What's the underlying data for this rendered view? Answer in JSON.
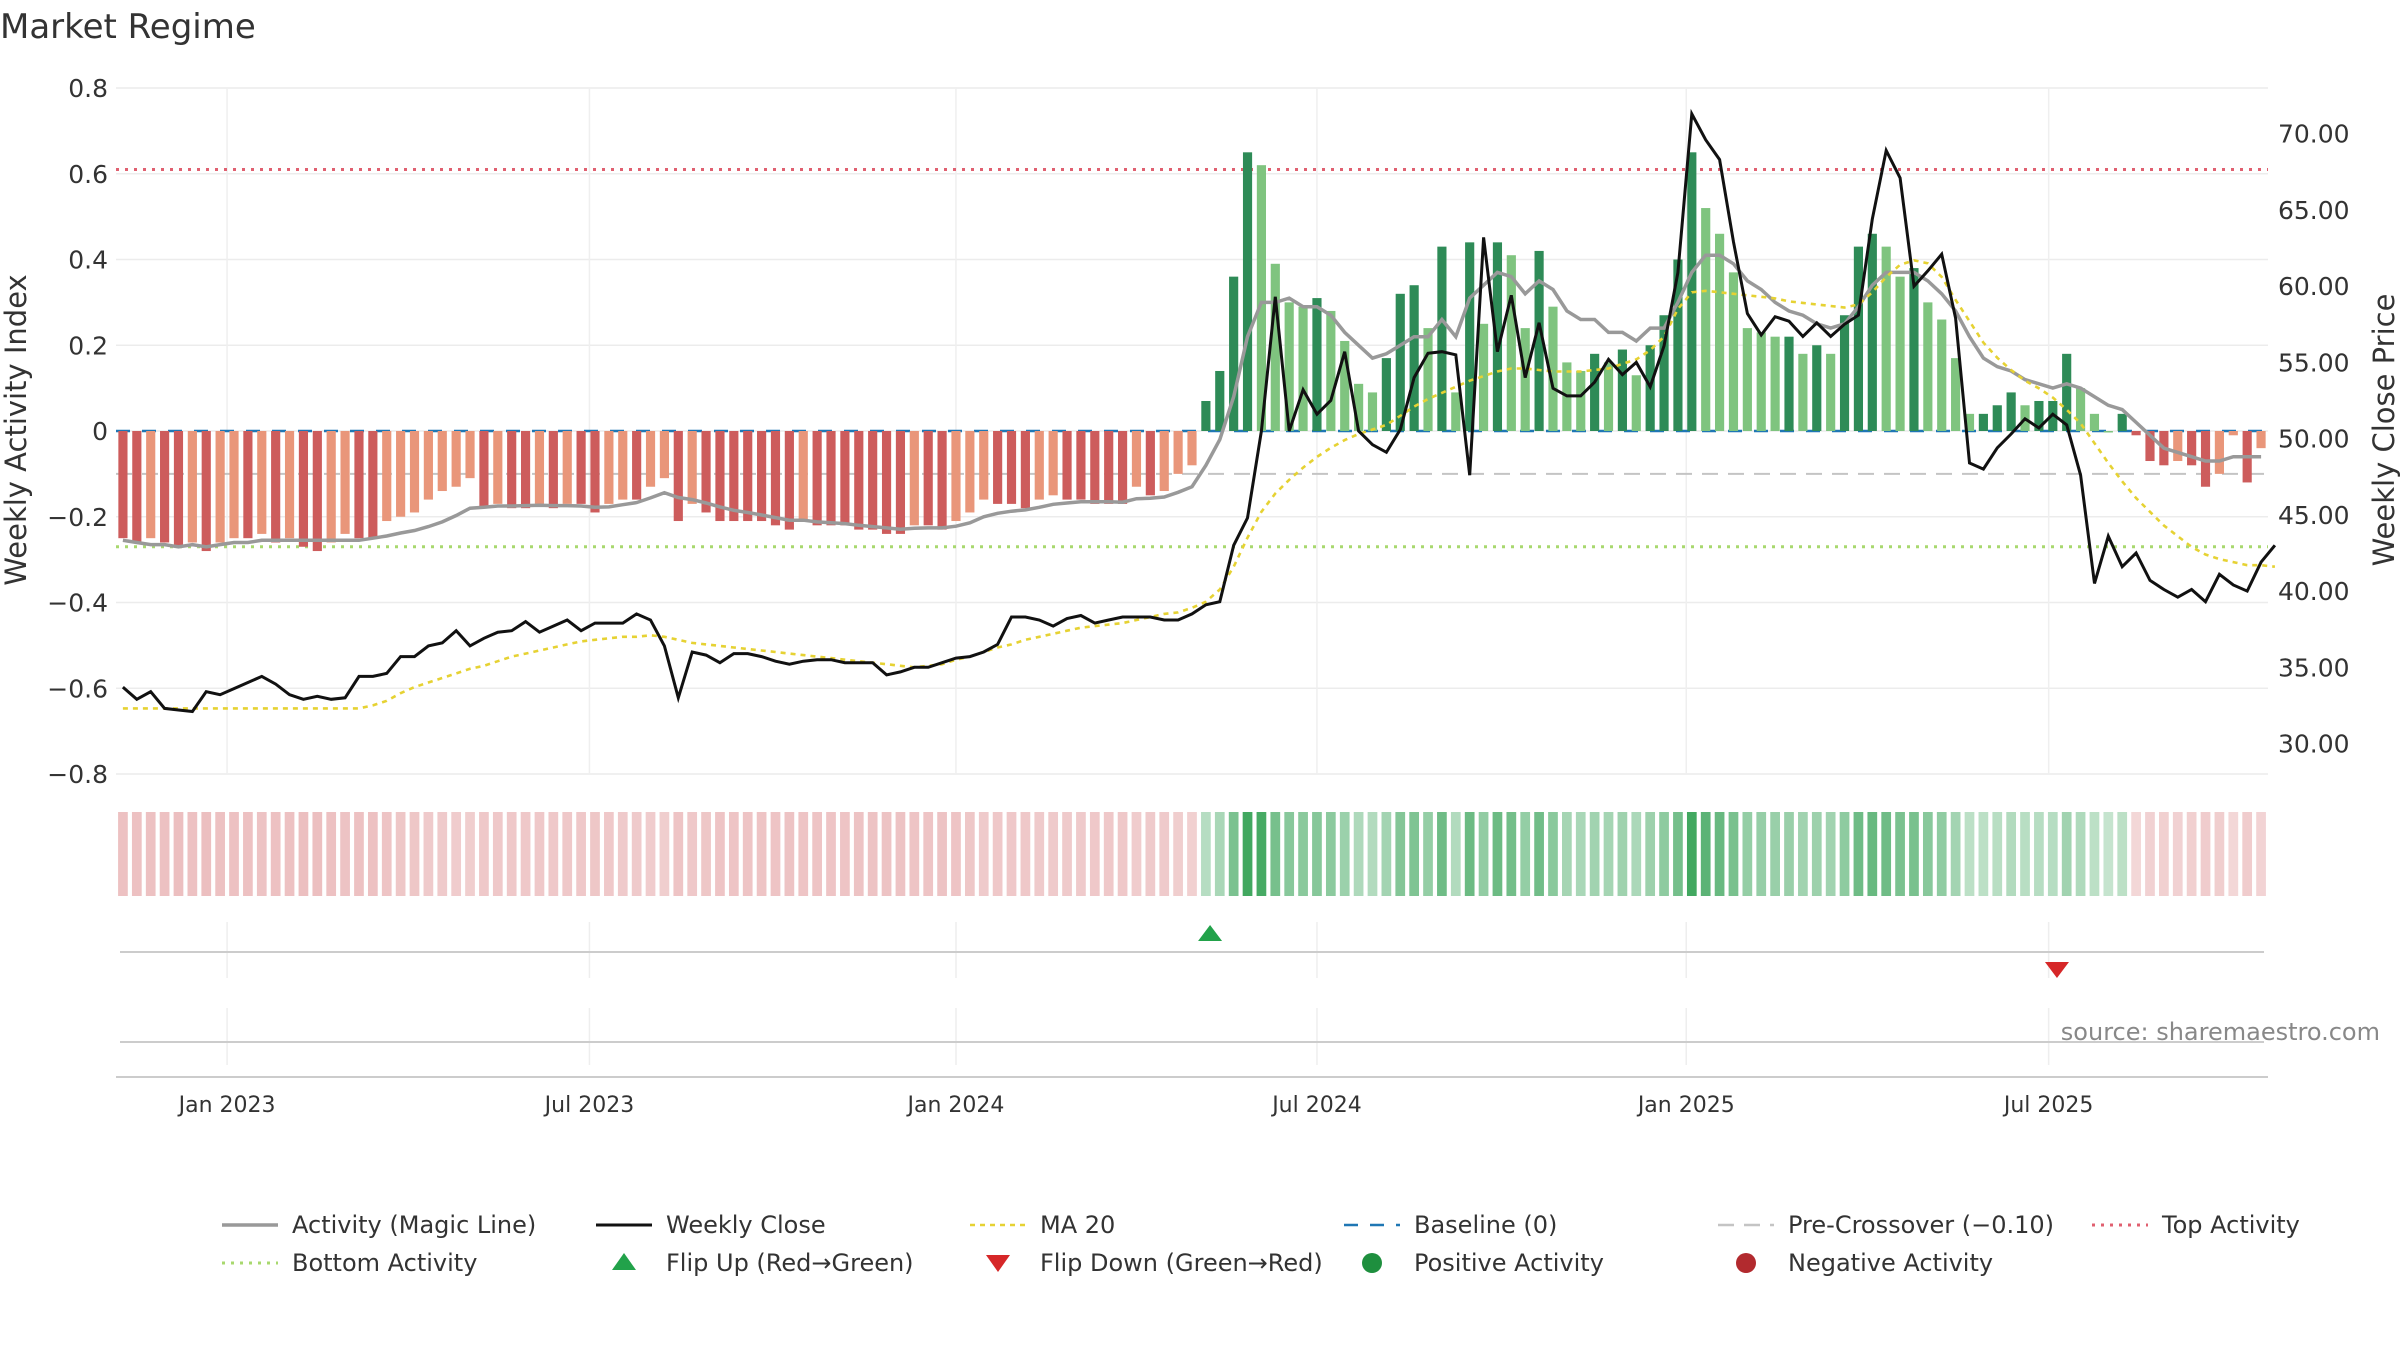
{
  "chart_data": {
    "type": "bar",
    "title": "Market Regime",
    "ylabel": "Weekly Activity Index",
    "y2label": "Weekly Close Price",
    "ylim": [
      -0.8,
      0.8
    ],
    "y2lim": [
      28,
      73
    ],
    "y_ticks": [
      "0.8",
      "0.6",
      "0.4",
      "0.2",
      "0",
      "−0.2",
      "−0.4",
      "−0.6",
      "−0.8"
    ],
    "y2_ticks": [
      "70.00",
      "65.00",
      "60.00",
      "55.00",
      "50.00",
      "45.00",
      "40.00",
      "35.00",
      "30.00"
    ],
    "x_ticks": [
      "Jan 2023",
      "Jul 2023",
      "Jan 2024",
      "Jul 2024",
      "Jan 2025",
      "Jul 2025"
    ],
    "x_tick_weeks": [
      7.5,
      33.6,
      60,
      86,
      112.6,
      138.7
    ],
    "week_start": "2022-10-24",
    "activity": [
      -0.25,
      -0.26,
      -0.25,
      -0.26,
      -0.27,
      -0.26,
      -0.28,
      -0.26,
      -0.25,
      -0.25,
      -0.24,
      -0.26,
      -0.25,
      -0.27,
      -0.28,
      -0.26,
      -0.24,
      -0.25,
      -0.25,
      -0.21,
      -0.2,
      -0.19,
      -0.16,
      -0.14,
      -0.13,
      -0.11,
      -0.18,
      -0.17,
      -0.18,
      -0.18,
      -0.17,
      -0.18,
      -0.17,
      -0.17,
      -0.19,
      -0.17,
      -0.16,
      -0.16,
      -0.13,
      -0.11,
      -0.21,
      -0.17,
      -0.19,
      -0.21,
      -0.21,
      -0.21,
      -0.21,
      -0.22,
      -0.23,
      -0.21,
      -0.22,
      -0.22,
      -0.22,
      -0.23,
      -0.23,
      -0.24,
      -0.24,
      -0.22,
      -0.22,
      -0.23,
      -0.21,
      -0.19,
      -0.16,
      -0.17,
      -0.17,
      -0.18,
      -0.16,
      -0.15,
      -0.16,
      -0.16,
      -0.17,
      -0.17,
      -0.17,
      -0.13,
      -0.15,
      -0.14,
      -0.1,
      -0.08,
      0.07,
      0.14,
      0.36,
      0.65,
      0.62,
      0.39,
      0.3,
      0.29,
      0.31,
      0.28,
      0.21,
      0.11,
      0.09,
      0.17,
      0.32,
      0.34,
      0.24,
      0.43,
      0.09,
      0.44,
      0.25,
      0.44,
      0.41,
      0.24,
      0.42,
      0.29,
      0.16,
      0.14,
      0.18,
      0.16,
      0.19,
      0.13,
      0.2,
      0.27,
      0.4,
      0.65,
      0.52,
      0.46,
      0.37,
      0.24,
      0.23,
      0.22,
      0.22,
      0.18,
      0.2,
      0.18,
      0.27,
      0.43,
      0.46,
      0.43,
      0.36,
      0.38,
      0.3,
      0.26,
      0.17,
      0.04,
      0.04,
      0.06,
      0.09,
      0.06,
      0.07,
      0.07,
      0.18,
      0.1,
      0.04,
      0.0,
      0.04,
      -0.01,
      -0.07,
      -0.08,
      -0.07,
      -0.08,
      -0.13,
      -0.1,
      -0.01,
      -0.12,
      -0.04
    ],
    "magic_line": [
      -0.255,
      -0.26,
      -0.265,
      -0.265,
      -0.27,
      -0.265,
      -0.27,
      -0.265,
      -0.26,
      -0.26,
      -0.255,
      -0.255,
      -0.255,
      -0.255,
      -0.255,
      -0.255,
      -0.255,
      -0.255,
      -0.25,
      -0.245,
      -0.238,
      -0.232,
      -0.223,
      -0.212,
      -0.197,
      -0.18,
      -0.178,
      -0.175,
      -0.175,
      -0.174,
      -0.173,
      -0.174,
      -0.174,
      -0.175,
      -0.178,
      -0.177,
      -0.172,
      -0.167,
      -0.156,
      -0.144,
      -0.155,
      -0.16,
      -0.168,
      -0.177,
      -0.185,
      -0.19,
      -0.196,
      -0.202,
      -0.208,
      -0.208,
      -0.212,
      -0.214,
      -0.216,
      -0.22,
      -0.223,
      -0.226,
      -0.229,
      -0.227,
      -0.226,
      -0.226,
      -0.222,
      -0.214,
      -0.2,
      -0.192,
      -0.187,
      -0.184,
      -0.178,
      -0.171,
      -0.168,
      -0.165,
      -0.165,
      -0.165,
      -0.166,
      -0.158,
      -0.157,
      -0.154,
      -0.143,
      -0.13,
      -0.08,
      -0.02,
      0.08,
      0.22,
      0.3,
      0.3,
      0.31,
      0.29,
      0.29,
      0.27,
      0.23,
      0.2,
      0.17,
      0.18,
      0.2,
      0.22,
      0.22,
      0.26,
      0.22,
      0.31,
      0.34,
      0.37,
      0.36,
      0.32,
      0.35,
      0.33,
      0.28,
      0.26,
      0.26,
      0.23,
      0.23,
      0.21,
      0.24,
      0.24,
      0.3,
      0.37,
      0.41,
      0.41,
      0.39,
      0.35,
      0.33,
      0.3,
      0.28,
      0.27,
      0.25,
      0.24,
      0.25,
      0.29,
      0.34,
      0.37,
      0.37,
      0.37,
      0.35,
      0.32,
      0.28,
      0.22,
      0.17,
      0.15,
      0.14,
      0.12,
      0.11,
      0.1,
      0.11,
      0.1,
      0.08,
      0.06,
      0.05,
      0.02,
      -0.01,
      -0.04,
      -0.05,
      -0.06,
      -0.07,
      -0.07,
      -0.06,
      -0.06,
      -0.06
    ],
    "weekly_close": [
      33.7,
      32.9,
      33.4,
      32.3,
      32.2,
      32.1,
      33.4,
      33.2,
      33.6,
      34.0,
      34.4,
      33.9,
      33.2,
      32.9,
      33.1,
      32.9,
      33.0,
      34.4,
      34.4,
      34.6,
      35.7,
      35.7,
      36.4,
      36.6,
      37.4,
      36.4,
      36.9,
      37.3,
      37.4,
      38.0,
      37.3,
      37.7,
      38.1,
      37.4,
      37.9,
      37.9,
      37.9,
      38.5,
      38.1,
      36.4,
      33.0,
      36.0,
      35.8,
      35.3,
      35.9,
      35.9,
      35.7,
      35.4,
      35.2,
      35.4,
      35.5,
      35.5,
      35.3,
      35.3,
      35.3,
      34.5,
      34.7,
      35.0,
      35.0,
      35.3,
      35.6,
      35.7,
      36.0,
      36.5,
      38.3,
      38.3,
      38.1,
      37.7,
      38.2,
      38.4,
      37.9,
      38.1,
      38.3,
      38.3,
      38.3,
      38.1,
      38.1,
      38.5,
      39.1,
      39.3,
      43.0,
      44.8,
      50.5,
      59.3,
      50.5,
      53.2,
      51.6,
      52.5,
      55.7,
      50.5,
      49.6,
      49.1,
      50.6,
      54.0,
      55.6,
      55.7,
      55.5,
      47.6,
      63.2,
      55.7,
      59.4,
      54.0,
      57.6,
      53.3,
      52.8,
      52.8,
      53.7,
      55.2,
      54.2,
      55.0,
      53.4,
      56.1,
      60.9,
      71.3,
      69.6,
      68.3,
      62.9,
      58.2,
      56.8,
      58.0,
      57.7,
      56.7,
      57.6,
      56.7,
      57.5,
      58.1,
      64.4,
      68.9,
      67.1,
      60.0,
      61.0,
      62.1,
      57.9,
      48.4,
      48.0,
      49.4,
      50.3,
      51.3,
      50.7,
      51.6,
      50.9,
      47.6,
      40.5,
      43.6,
      41.6,
      42.5,
      40.7,
      40.1,
      39.6,
      40.1,
      39.3,
      41.1,
      40.4,
      40.0,
      41.9,
      43.0
    ],
    "ma20": [
      32.3,
      32.3,
      32.3,
      32.3,
      32.3,
      32.3,
      32.3,
      32.3,
      32.3,
      32.3,
      32.3,
      32.3,
      32.3,
      32.3,
      32.3,
      32.3,
      32.3,
      32.3,
      32.5,
      32.8,
      33.3,
      33.7,
      34.0,
      34.3,
      34.6,
      34.9,
      35.1,
      35.4,
      35.7,
      35.9,
      36.1,
      36.3,
      36.5,
      36.7,
      36.8,
      36.9,
      37.0,
      37.0,
      37.1,
      37.0,
      36.8,
      36.6,
      36.5,
      36.4,
      36.3,
      36.2,
      36.1,
      36.0,
      35.9,
      35.8,
      35.7,
      35.6,
      35.5,
      35.4,
      35.3,
      35.2,
      35.1,
      35.0,
      35.1,
      35.2,
      35.5,
      35.7,
      36.0,
      36.3,
      36.5,
      36.8,
      37.0,
      37.2,
      37.4,
      37.6,
      37.7,
      37.8,
      37.9,
      38.1,
      38.3,
      38.5,
      38.6,
      38.9,
      39.3,
      40.1,
      41.6,
      43.5,
      45.2,
      46.4,
      47.3,
      48.1,
      48.8,
      49.4,
      49.9,
      50.3,
      50.6,
      50.9,
      51.5,
      52.1,
      52.6,
      53.0,
      53.4,
      53.8,
      54.1,
      54.4,
      54.6,
      54.6,
      54.5,
      54.4,
      54.4,
      54.4,
      54.5,
      54.6,
      54.9,
      55.2,
      55.8,
      56.7,
      58.5,
      59.6,
      59.7,
      59.6,
      59.5,
      59.4,
      59.3,
      59.2,
      59.0,
      58.9,
      58.8,
      58.7,
      58.6,
      58.8,
      59.6,
      60.6,
      61.4,
      61.7,
      61.5,
      60.6,
      59.1,
      57.7,
      56.3,
      55.3,
      54.5,
      53.8,
      53.3,
      52.7,
      51.9,
      51.0,
      49.7,
      48.4,
      47.2,
      46.1,
      45.2,
      44.3,
      43.6,
      42.9,
      42.4,
      42.1,
      41.9,
      41.7,
      41.7,
      41.6
    ],
    "pre_crossover": -0.1,
    "top_activity": 0.61,
    "bottom_activity": -0.27,
    "flip_up_weeks": [
      78.3
    ],
    "flip_down_weeks": [
      139.3
    ],
    "legend": [
      {
        "label": "Activity (Magic Line)",
        "style": "gray-line"
      },
      {
        "label": "Weekly Close",
        "style": "black-line"
      },
      {
        "label": "MA 20",
        "style": "yellow-dotted"
      },
      {
        "label": "Baseline (0)",
        "style": "blue-dashed"
      },
      {
        "label": "Pre-Crossover (−0.10)",
        "style": "gray-dashed"
      },
      {
        "label": "Top Activity",
        "style": "red-dotted"
      },
      {
        "label": "Bottom Activity",
        "style": "green-dotted"
      },
      {
        "label": "Flip Up (Red→Green)",
        "style": "green-triangle-up"
      },
      {
        "label": "Flip Down (Green→Red)",
        "style": "red-triangle-down"
      },
      {
        "label": "Positive Activity",
        "style": "green-dot"
      },
      {
        "label": "Negative Activity",
        "style": "red-dot"
      }
    ],
    "source": "source: sharemaestro.com",
    "grid": true,
    "colors": {
      "pos_strong": "#2e8b57",
      "pos_light": "#7fc47f",
      "neg_strong": "#cd5c5c",
      "neg_light": "#e9967a",
      "magic_line": "#999999",
      "close": "#111111",
      "ma20": "#e6d233",
      "baseline": "#1f77b4",
      "top": "#e06070",
      "bottom": "#a8d86e",
      "flip_up": "#22a24a",
      "flip_down": "#d62728"
    }
  }
}
